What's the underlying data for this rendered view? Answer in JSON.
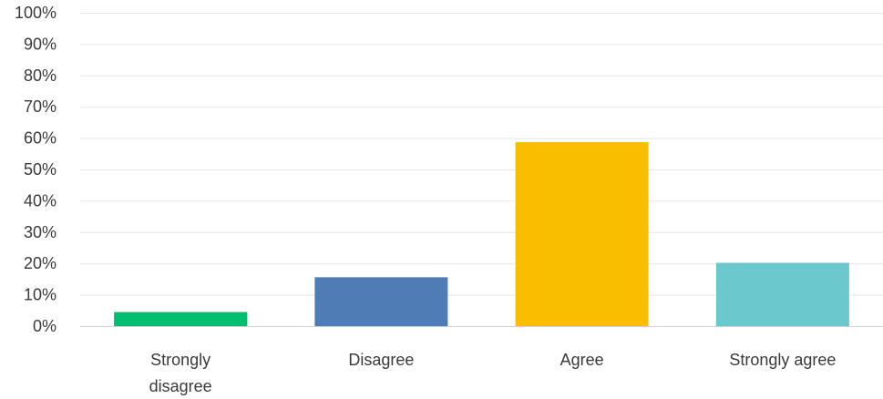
{
  "chart_data": {
    "type": "bar",
    "categories": [
      [
        "Strongly",
        "disagree"
      ],
      [
        "Disagree"
      ],
      [
        "Agree"
      ],
      [
        "Strongly agree"
      ]
    ],
    "values": [
      4.5,
      15.6,
      58.7,
      20.2
    ],
    "colors": [
      "#00bf6f",
      "#507cb6",
      "#f9be00",
      "#6bc8cd"
    ],
    "y_ticks": [
      "0%",
      "10%",
      "20%",
      "30%",
      "40%",
      "50%",
      "60%",
      "70%",
      "80%",
      "90%",
      "100%"
    ],
    "ylim": [
      0,
      100
    ],
    "grid": true,
    "legend": false
  }
}
